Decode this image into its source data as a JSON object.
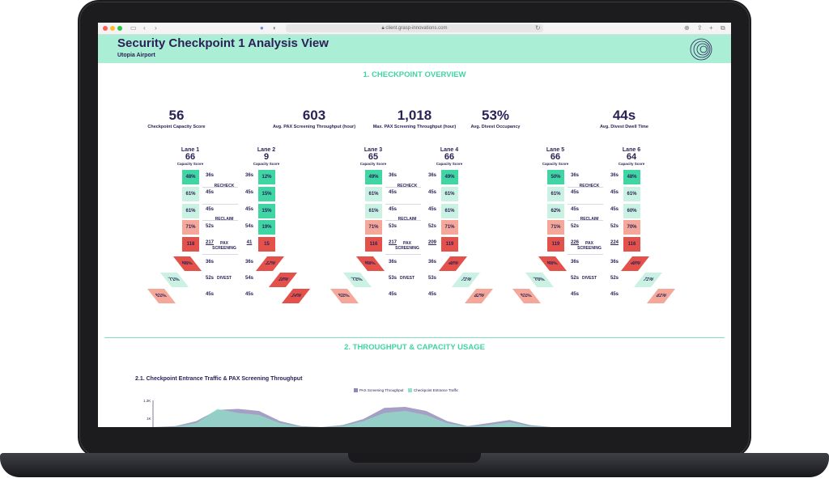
{
  "browser": {
    "url": "client.grasp-innovations.com"
  },
  "header": {
    "title": "Security Checkpoint 1 Analysis View",
    "subtitle": "Utopia Airport"
  },
  "section1": {
    "title": "1. CHECKPOINT OVERVIEW"
  },
  "kpis": [
    {
      "value": "56",
      "label": "Checkpoint Capacity Score"
    },
    {
      "value": "603",
      "label": "Avg. PAX Screening Throughput (hour)"
    },
    {
      "value": "1,018",
      "label": "Max. PAX Screening Throughput (hour)"
    },
    {
      "value": "53%",
      "label": "Avg. Divest Occupancy"
    },
    {
      "value": "44s",
      "label": "Avg. Divest Dwell Time"
    }
  ],
  "capacity_label": "Capacity Score",
  "stages": {
    "recheck": "RECHECK",
    "reclaim": "RECLAIM",
    "pax_screening": "PAX SCREENING",
    "divest": "DIVEST"
  },
  "colors": {
    "green_dark": "#3fd6a3",
    "green_light": "#c9f2e3",
    "red_light": "#f5a89a",
    "red_dark": "#e3514a",
    "navy": "#2b2257",
    "mint": "#aaeed5"
  },
  "pairs": [
    {
      "left": {
        "name": "Lane 1",
        "score": "66",
        "cells": [
          "48%",
          "61%",
          "61%",
          "71%",
          "118"
        ],
        "divest": [
          "48%",
          "71%",
          "61%"
        ]
      },
      "right": {
        "name": "Lane 2",
        "score": "9",
        "cells": [
          "12%",
          "15%",
          "15%",
          "19%",
          "15"
        ],
        "divest": [
          "12%",
          "18%",
          "14%"
        ]
      },
      "times_left": [
        "36s",
        "45s",
        "45s",
        "52s",
        "217",
        "36s",
        "52s",
        "45s"
      ],
      "times_right": [
        "36s",
        "45s",
        "45s",
        "54s",
        "41",
        "36s",
        "54s",
        "45s"
      ]
    },
    {
      "left": {
        "name": "Lane 3",
        "score": "65",
        "cells": [
          "49%",
          "61%",
          "61%",
          "71%",
          "116"
        ],
        "divest": [
          "49%",
          "72%",
          "62%"
        ]
      },
      "right": {
        "name": "Lane 4",
        "score": "66",
        "cells": [
          "49%",
          "61%",
          "61%",
          "71%",
          "119"
        ],
        "divest": [
          "48%",
          "71%",
          "62%"
        ]
      },
      "times_left": [
        "36s",
        "45s",
        "45s",
        "53s",
        "217",
        "36s",
        "53s",
        "45s"
      ],
      "times_right": [
        "36s",
        "45s",
        "45s",
        "52s",
        "209",
        "36s",
        "53s",
        "45s"
      ]
    },
    {
      "left": {
        "name": "Lane 5",
        "score": "66",
        "cells": [
          "50%",
          "61%",
          "62%",
          "71%",
          "119"
        ],
        "divest": [
          "49%",
          "70%",
          "61%"
        ]
      },
      "right": {
        "name": "Lane 6",
        "score": "64",
        "cells": [
          "48%",
          "61%",
          "60%",
          "70%",
          "116"
        ],
        "divest": [
          "48%",
          "71%",
          "61%"
        ]
      },
      "times_left": [
        "36s",
        "45s",
        "45s",
        "52s",
        "226",
        "36s",
        "52s",
        "45s"
      ],
      "times_right": [
        "36s",
        "45s",
        "45s",
        "52s",
        "224",
        "36s",
        "52s",
        "45s"
      ]
    }
  ],
  "section2": {
    "title": "2. THROUGHPUT & CAPACITY USAGE",
    "subtitle": "2.1. Checkpoint Entrance Traffic & PAX Screening Throughput"
  },
  "legend": {
    "pax_screening": "PAX Screening Throughput",
    "entrance": "Checkpoint Entrance Traffic",
    "pax_color": "#8f87b8",
    "entrance_color": "#8fe3c6"
  },
  "chart_data": {
    "type": "area",
    "series": [
      {
        "name": "PAX Screening Throughput",
        "values": [
          0,
          0.05,
          0.3,
          0.85,
          0.9,
          0.8,
          0.3,
          0.05,
          0,
          0.1,
          0.4,
          0.95,
          1,
          0.8,
          0.3,
          0.05,
          0.2,
          0.35,
          0.1,
          0
        ]
      },
      {
        "name": "Checkpoint Entrance Traffic",
        "values": [
          0,
          0.02,
          0.2,
          0.9,
          0.7,
          0.6,
          0.2,
          0.02,
          0,
          0.05,
          0.3,
          0.7,
          0.8,
          0.6,
          0.2,
          0.02,
          0.1,
          0.25,
          0.05,
          0
        ]
      }
    ],
    "y_ticks": [
      "1.2K",
      "1K"
    ]
  }
}
